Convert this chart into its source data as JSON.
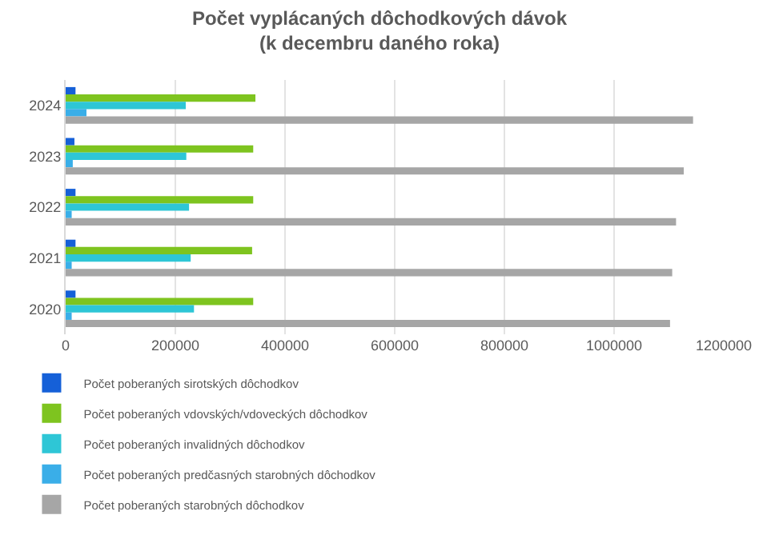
{
  "chart_data": {
    "type": "bar",
    "orientation": "horizontal",
    "title": "Počet vyplácaných dôchodkových dávok\n(k decembru daného roka)",
    "categories": [
      "2024",
      "2023",
      "2022",
      "2021",
      "2020"
    ],
    "series": [
      {
        "name": "Počet poberaných sirotských dôchodkov",
        "color": "#1560d8",
        "values": [
          18000,
          16000,
          18000,
          18000,
          18000
        ]
      },
      {
        "name": "Počet poberaných vdovských/vdoveckých dôchodkov",
        "color": "#7ec41f",
        "values": [
          346000,
          342000,
          342000,
          340000,
          342000
        ]
      },
      {
        "name": "Počet poberaných invalidných dôchodkov",
        "color": "#2ec6d6",
        "values": [
          219000,
          220000,
          225000,
          228000,
          234000
        ]
      },
      {
        "name": "Počet poberaných predčasných starobných dôchodkov",
        "color": "#3aaee8",
        "values": [
          38000,
          13000,
          11000,
          11000,
          11000
        ]
      },
      {
        "name": "Počet poberaných starobných dôchodkov",
        "color": "#a6a6a6",
        "values": [
          1144000,
          1127000,
          1113000,
          1106000,
          1102000
        ]
      }
    ],
    "xlim": [
      0,
      1200000
    ],
    "xticks": [
      0,
      200000,
      400000,
      600000,
      800000,
      1000000,
      1200000
    ],
    "grid": "x",
    "legend": "bottom"
  }
}
